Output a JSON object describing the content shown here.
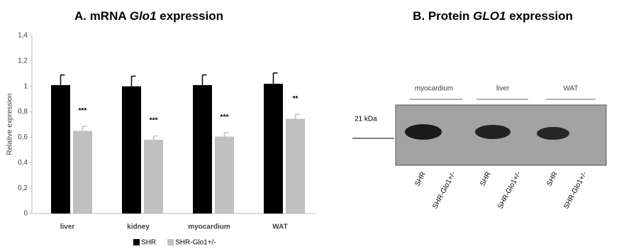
{
  "chart_data": {
    "type": "bar",
    "title": [
      "A. mRNA ",
      "Glo1",
      " expression"
    ],
    "y_label": "Relative expression",
    "categories": [
      "liver",
      "kidney",
      "myocardium",
      "WAT"
    ],
    "series": [
      {
        "name": "SHR",
        "color": "#000000",
        "values": [
          1.01,
          1.0,
          1.01,
          1.02
        ],
        "errors": [
          0.08,
          0.08,
          0.08,
          0.085
        ]
      },
      {
        "name": "SHR-Glo1+/-",
        "color": "#c0c0c0",
        "values": [
          0.65,
          0.58,
          0.605,
          0.745
        ],
        "errors": [
          0.035,
          0.03,
          0.03,
          0.035
        ]
      }
    ],
    "annotations": [
      "***",
      "***",
      "***",
      "**"
    ],
    "ylim": [
      0,
      1.4
    ],
    "yticks": [
      0,
      {
        "value": 0.2,
        "label": "0,2"
      },
      {
        "value": 0.4,
        "label": "0,4"
      },
      {
        "value": 0.6,
        "label": "0,6"
      },
      {
        "value": 0.8,
        "label": "0,8"
      },
      1,
      {
        "value": 1.2,
        "label": "1,2"
      },
      {
        "value": 1.4,
        "label": "1,4"
      }
    ],
    "legend": "bottom"
  },
  "blot": {
    "title": [
      "B. Protein ",
      "GLO1",
      " expression"
    ],
    "tissues": [
      "myocardium",
      "liver",
      "WAT"
    ],
    "marker": "21 kDa",
    "lanes": [
      "SHR",
      "SHR-Glo1+/-",
      "SHR",
      "SHR-Glo1+/-",
      "SHR",
      "SHR-Glo1+/-"
    ]
  }
}
